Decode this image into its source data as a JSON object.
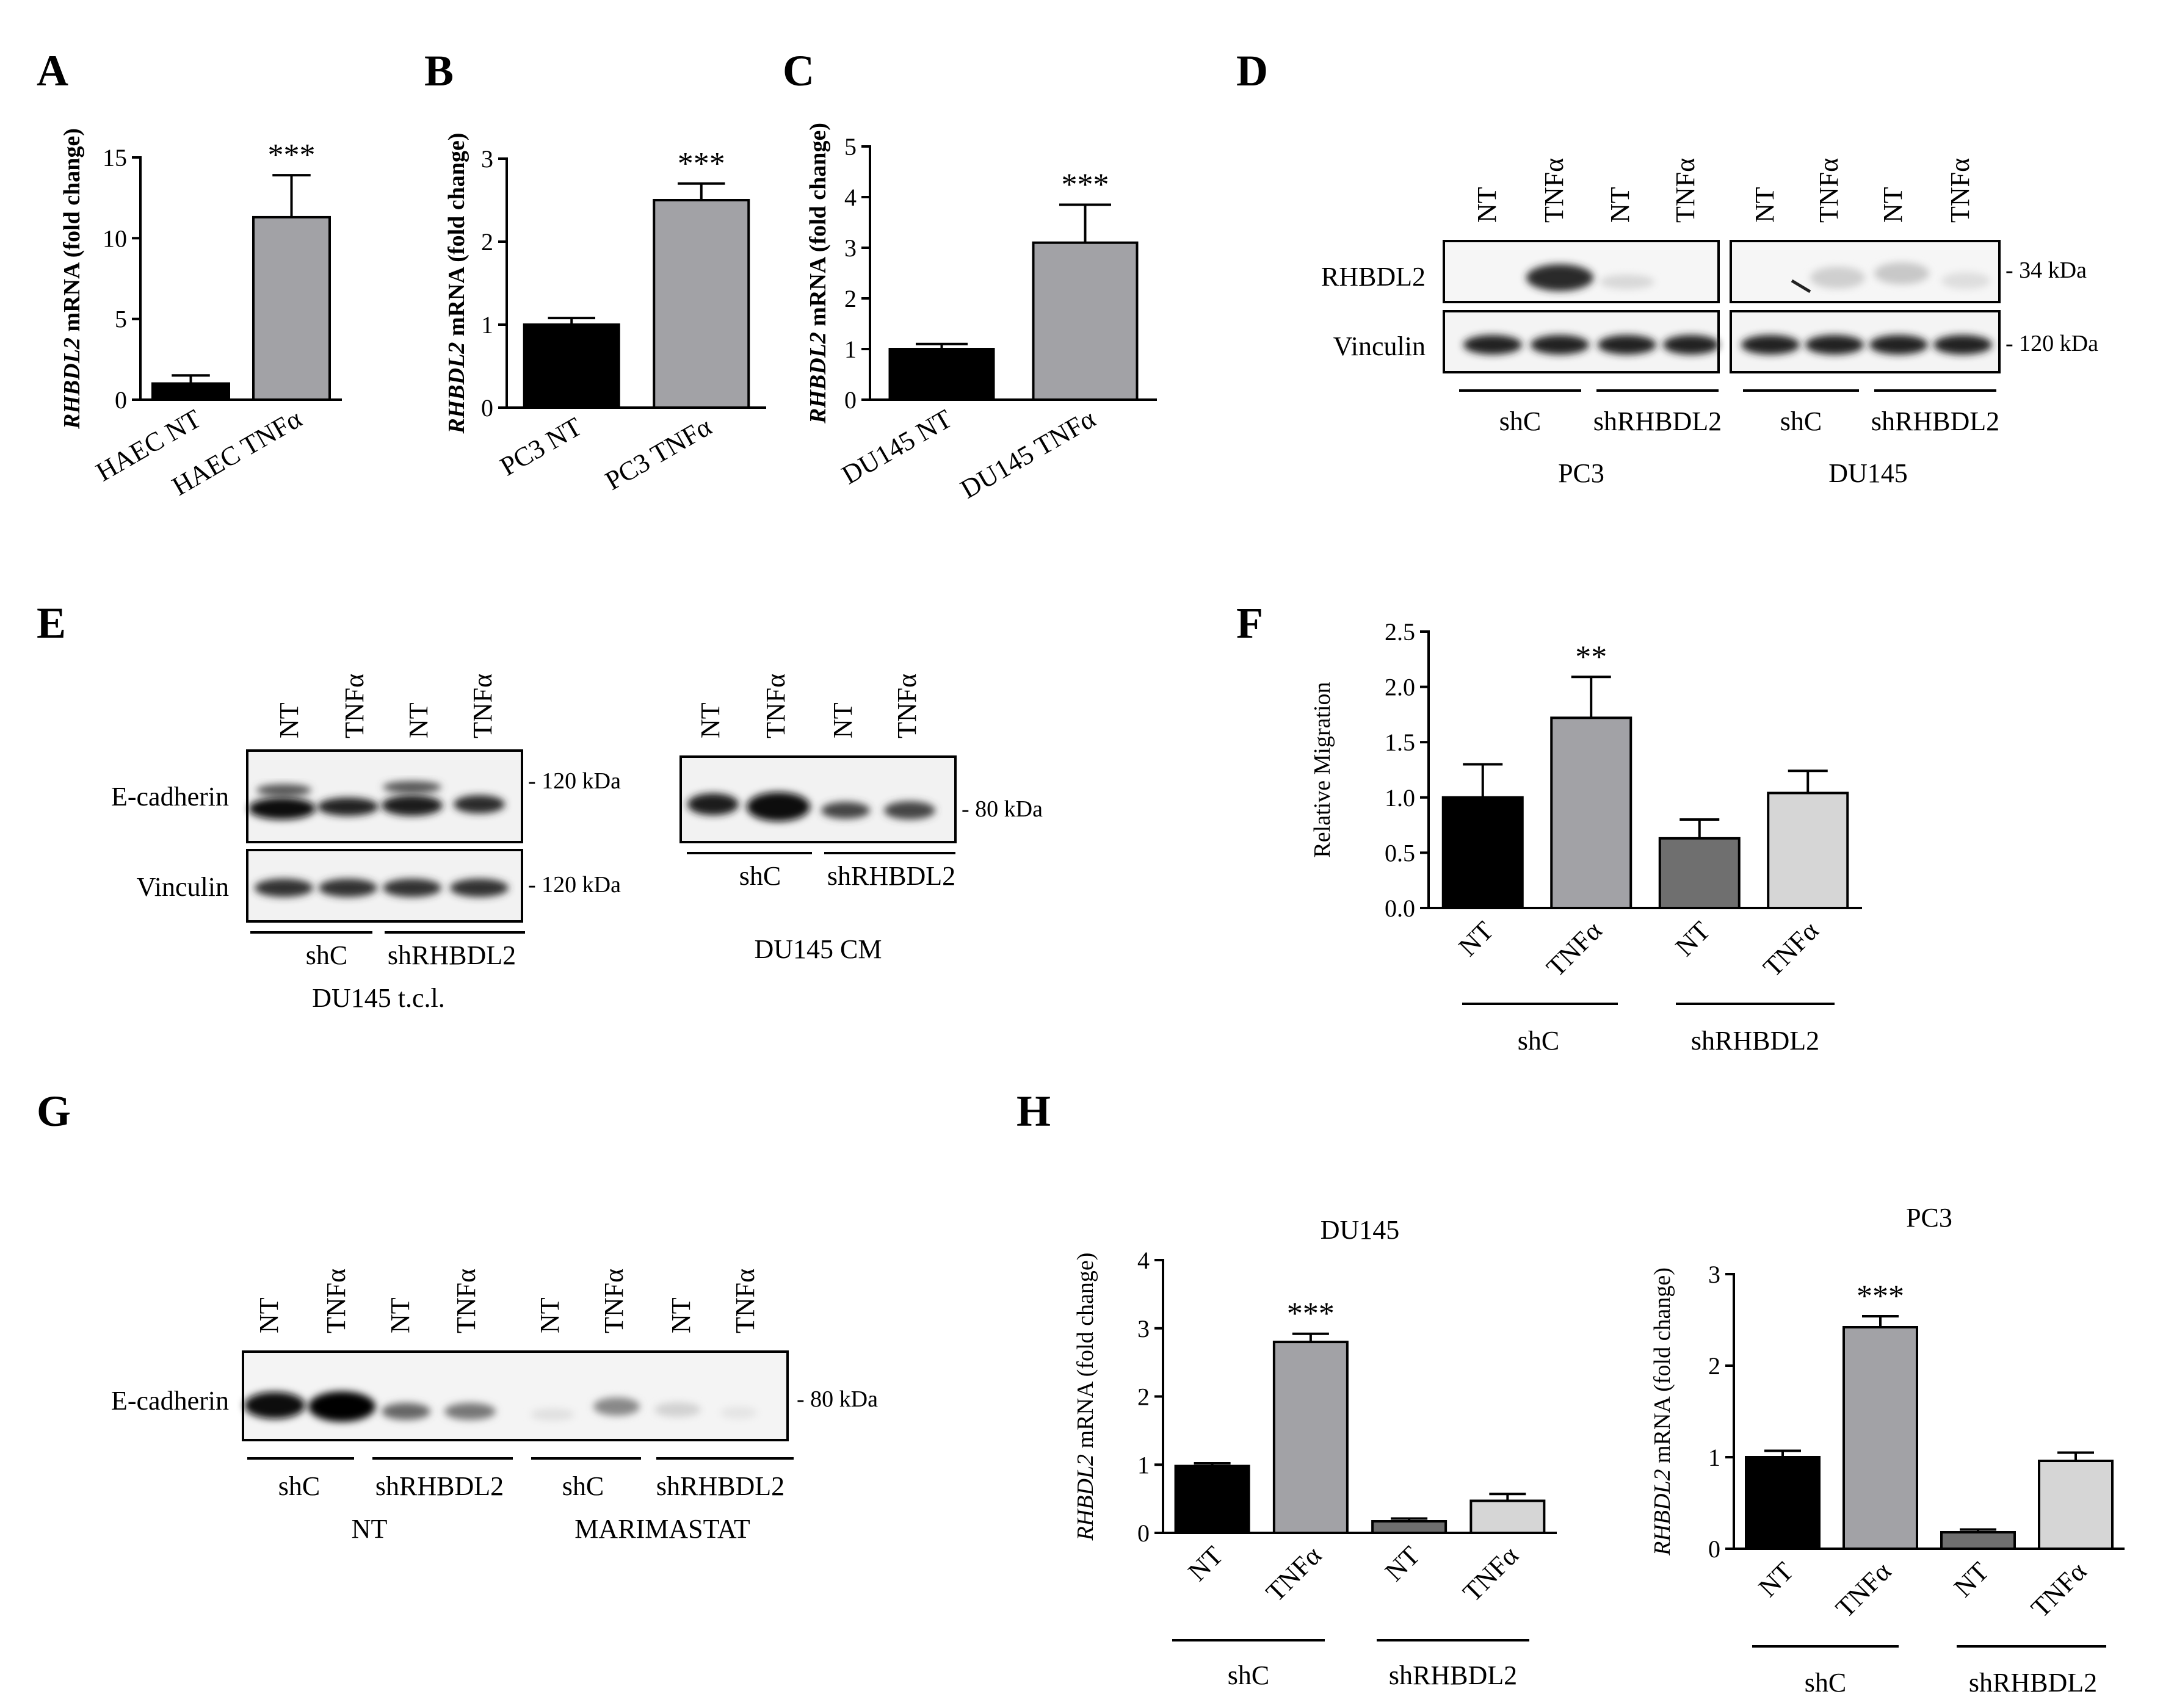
{
  "panels": {
    "A": {
      "letter": "A"
    },
    "B": {
      "letter": "B"
    },
    "C": {
      "letter": "C"
    },
    "D": {
      "letter": "D",
      "lanes": [
        "NT",
        "TNFα",
        "NT",
        "TNFα",
        "NT",
        "TNFα",
        "NT",
        "TNFα"
      ],
      "row1_label": "RHBDL2",
      "row2_label": "Vinculin",
      "row1_kda": "34 kDa",
      "row2_kda": "120 kDa",
      "group_labels": [
        "shC",
        "shRHBDL2",
        "shC",
        "shRHBDL2"
      ],
      "cell_labels": [
        "PC3",
        "DU145"
      ]
    },
    "E": {
      "letter": "E",
      "lanes_tcl": [
        "NT",
        "TNFα",
        "NT",
        "TNFα"
      ],
      "lanes_cm": [
        "NT",
        "TNFα",
        "NT",
        "TNFα"
      ],
      "tcl_row1": "E-cadherin",
      "tcl_row2": "Vinculin",
      "tcl_row1_kda": "120 kDa",
      "tcl_row2_kda": "120 kDa",
      "cm_kda": "80 kDa",
      "tcl_groups": [
        "shC",
        "shRHBDL2"
      ],
      "cm_groups": [
        "shC",
        "shRHBDL2"
      ],
      "tcl_caption": "DU145 t.c.l.",
      "cm_caption": "DU145 CM"
    },
    "F": {
      "letter": "F",
      "groups": [
        "shC",
        "shRHBDL2"
      ]
    },
    "G": {
      "letter": "G",
      "lanes": [
        "NT",
        "TNFα",
        "NT",
        "TNFα",
        "NT",
        "TNFα",
        "NT",
        "TNFα"
      ],
      "row_label": "E-cadherin",
      "kda": "80 kDa",
      "groups": [
        "shC",
        "shRHBDL2",
        "shC",
        "shRHBDL2"
      ],
      "treatments": [
        "NT",
        "MARIMASTAT"
      ]
    },
    "H": {
      "letter": "H",
      "groups": [
        "shC",
        "shRHBDL2"
      ]
    }
  },
  "chart_data": [
    {
      "panel": "A",
      "type": "bar",
      "categories": [
        "HAEC NT",
        "HAEC TNFα"
      ],
      "values": [
        1.0,
        11.3
      ],
      "errors": [
        0.5,
        2.6
      ],
      "colors": [
        "#000000",
        "#a2a2a6"
      ],
      "ylabel_italic": "RHBDL2",
      "ylabel_rest": " mRNA (fold change)",
      "ylim": [
        0,
        15
      ],
      "yticks": [
        "0",
        "5",
        "10",
        "15"
      ],
      "annotations": [
        {
          "index": 1,
          "text": "***"
        }
      ]
    },
    {
      "panel": "B",
      "type": "bar",
      "categories": [
        "PC3 NT",
        "PC3 TNFα"
      ],
      "values": [
        1.0,
        2.5
      ],
      "errors": [
        0.08,
        0.2
      ],
      "colors": [
        "#000000",
        "#a2a2a6"
      ],
      "ylabel_italic": "RHBDL2",
      "ylabel_rest": " mRNA (fold change)",
      "ylim": [
        0,
        3
      ],
      "yticks": [
        "0",
        "1",
        "2",
        "3"
      ],
      "annotations": [
        {
          "index": 1,
          "text": "***"
        }
      ]
    },
    {
      "panel": "C",
      "type": "bar",
      "categories": [
        "DU145 NT",
        "DU145 TNFα"
      ],
      "values": [
        1.0,
        3.1
      ],
      "errors": [
        0.1,
        0.75
      ],
      "colors": [
        "#000000",
        "#a2a2a6"
      ],
      "ylabel_italic": "RHBDL2",
      "ylabel_rest": " mRNA (fold change)",
      "ylim": [
        0,
        5
      ],
      "yticks": [
        "0",
        "1",
        "2",
        "3",
        "4",
        "5"
      ],
      "annotations": [
        {
          "index": 1,
          "text": "***"
        }
      ]
    },
    {
      "panel": "F",
      "type": "bar",
      "categories": [
        "NT",
        "TNFα",
        "NT",
        "TNFα"
      ],
      "values": [
        1.0,
        1.72,
        0.63,
        1.04
      ],
      "errors": [
        0.3,
        0.37,
        0.17,
        0.2
      ],
      "colors": [
        "#000000",
        "#a2a2a6",
        "#6f6f6f",
        "#d6d6d6"
      ],
      "ylabel_italic": "",
      "ylabel_rest": "Relative Migration",
      "ylim": [
        0,
        2.5
      ],
      "yticks": [
        "0.0",
        "0.5",
        "1.0",
        "1.5",
        "2.0",
        "2.5"
      ],
      "annotations": [
        {
          "index": 1,
          "text": "**"
        }
      ]
    },
    {
      "panel": "H",
      "type": "bar",
      "title": "DU145",
      "categories": [
        "NT",
        "TNFα",
        "NT",
        "TNFα"
      ],
      "values": [
        0.98,
        2.8,
        0.17,
        0.47
      ],
      "errors": [
        0.04,
        0.12,
        0.04,
        0.1
      ],
      "colors": [
        "#000000",
        "#a2a2a6",
        "#6f6f6f",
        "#d6d6d6"
      ],
      "ylabel_italic": "RHBDL2",
      "ylabel_rest": " mRNA (fold change)",
      "ylim": [
        0,
        4
      ],
      "yticks": [
        "0",
        "1",
        "2",
        "3",
        "4"
      ],
      "annotations": [
        {
          "index": 1,
          "text": "***"
        }
      ]
    },
    {
      "panel": "H",
      "type": "bar",
      "title": "PC3",
      "categories": [
        "NT",
        "TNFα",
        "NT",
        "TNFα"
      ],
      "values": [
        1.0,
        2.42,
        0.18,
        0.96
      ],
      "errors": [
        0.07,
        0.12,
        0.03,
        0.09
      ],
      "colors": [
        "#000000",
        "#a2a2a6",
        "#6f6f6f",
        "#d6d6d6"
      ],
      "ylabel_italic": "RHBDL2",
      "ylabel_rest": " mRNA (fold change)",
      "ylim": [
        0,
        3
      ],
      "yticks": [
        "0",
        "1",
        "2",
        "3"
      ],
      "annotations": [
        {
          "index": 1,
          "text": "***"
        }
      ]
    }
  ]
}
